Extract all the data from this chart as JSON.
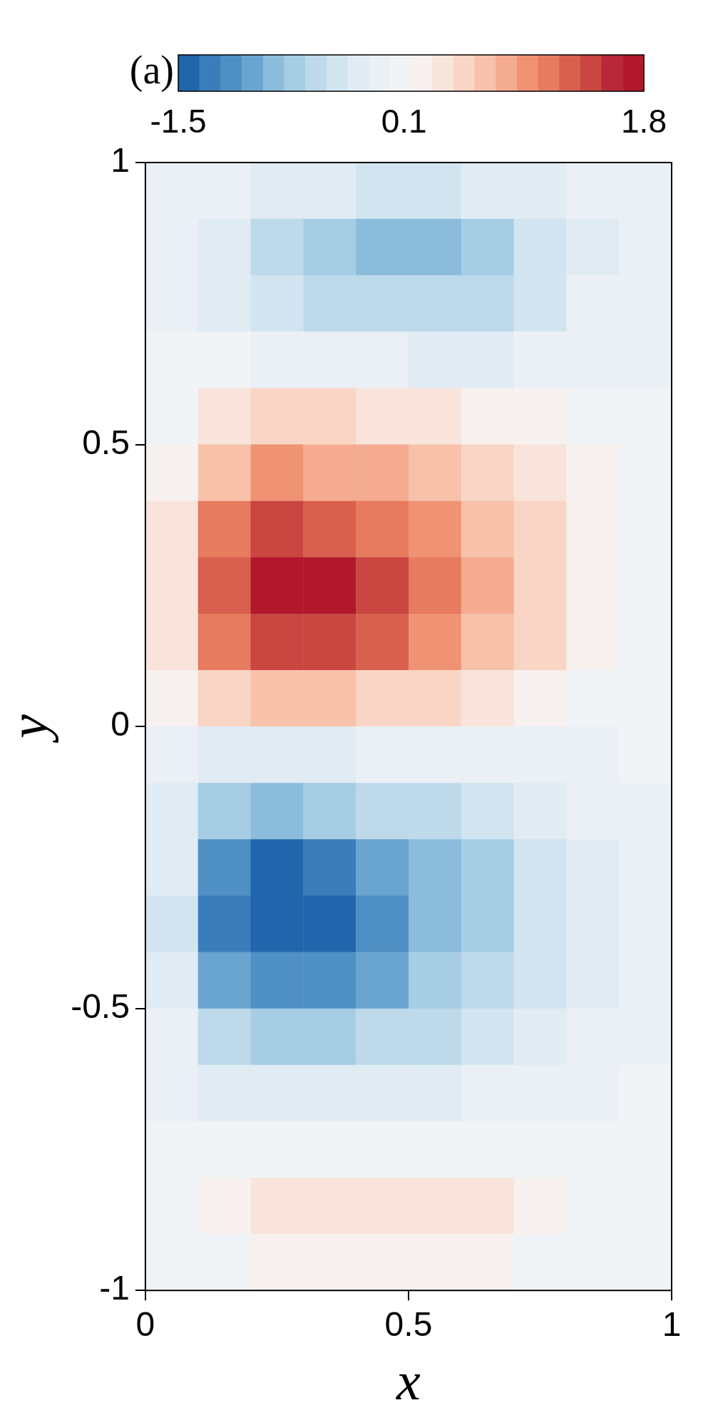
{
  "chart_data": {
    "type": "heatmap",
    "title": "(a)",
    "xlabel": "x",
    "ylabel": "y",
    "x": [
      0.05,
      0.15,
      0.25,
      0.35,
      0.45,
      0.55,
      0.65,
      0.75,
      0.85,
      0.95
    ],
    "xlim": [
      0,
      1
    ],
    "xticks": [
      0,
      0.5,
      1
    ],
    "ylim": [
      -1,
      1
    ],
    "yticks": [
      -1,
      -0.5,
      0,
      0.5,
      1
    ],
    "clim": [
      -1.5,
      1.8
    ],
    "cticks": [
      -1.5,
      0.1,
      1.8
    ],
    "grid": false,
    "colors": [
      "#2166ac",
      "#3a7dba",
      "#4f90c4",
      "#6aa5d0",
      "#8bbcdc",
      "#a6cde4",
      "#bdd9ea",
      "#d1e4f0",
      "#e0ebf3",
      "#eaf0f5",
      "#f1f4f7",
      "#f7f1ef",
      "#f9e4dc",
      "#f9d5c5",
      "#f7c1aa",
      "#f4ab8f",
      "#ef9374",
      "#e67b5f",
      "#d9604e",
      "#c94641",
      "#b8283a",
      "#b2182b"
    ],
    "cells": [
      [
        -0.05,
        -0.15,
        -0.25,
        -0.3,
        -0.35,
        -0.35,
        -0.3,
        -0.2,
        -0.1,
        -0.05
      ],
      [
        -0.1,
        -0.3,
        -0.55,
        -0.7,
        -0.8,
        -0.85,
        -0.7,
        -0.45,
        -0.2,
        -0.05
      ],
      [
        -0.05,
        -0.2,
        -0.4,
        -0.5,
        -0.55,
        -0.55,
        -0.5,
        -0.35,
        -0.15,
        -0.05
      ],
      [
        0.05,
        0.0,
        -0.05,
        -0.1,
        -0.15,
        -0.2,
        -0.2,
        -0.15,
        -0.1,
        -0.05
      ],
      [
        0.1,
        0.35,
        0.45,
        0.45,
        0.4,
        0.35,
        0.25,
        0.15,
        0.05,
        0.0
      ],
      [
        0.2,
        0.7,
        0.9,
        0.85,
        0.75,
        0.6,
        0.45,
        0.3,
        0.15,
        0.05
      ],
      [
        0.3,
        1.1,
        1.4,
        1.3,
        1.1,
        0.9,
        0.7,
        0.45,
        0.2,
        0.05
      ],
      [
        0.35,
        1.3,
        1.7,
        1.65,
        1.35,
        1.1,
        0.8,
        0.5,
        0.25,
        0.05
      ],
      [
        0.3,
        1.1,
        1.45,
        1.4,
        1.2,
        0.95,
        0.7,
        0.45,
        0.2,
        0.05
      ],
      [
        0.15,
        0.5,
        0.65,
        0.6,
        0.55,
        0.45,
        0.35,
        0.25,
        0.1,
        0.0
      ],
      [
        -0.05,
        -0.2,
        -0.25,
        -0.2,
        -0.15,
        -0.1,
        -0.1,
        -0.05,
        -0.05,
        0.0
      ],
      [
        -0.2,
        -0.7,
        -0.8,
        -0.7,
        -0.6,
        -0.5,
        -0.4,
        -0.3,
        -0.15,
        -0.05
      ],
      [
        -0.3,
        -1.1,
        -1.35,
        -1.25,
        -1.05,
        -0.85,
        -0.65,
        -0.45,
        -0.2,
        -0.05
      ],
      [
        -0.35,
        -1.25,
        -1.5,
        -1.4,
        -1.1,
        -0.9,
        -0.7,
        -0.45,
        -0.25,
        -0.05
      ],
      [
        -0.3,
        -0.95,
        -1.15,
        -1.1,
        -0.95,
        -0.75,
        -0.55,
        -0.4,
        -0.2,
        -0.05
      ],
      [
        -0.15,
        -0.55,
        -0.7,
        -0.65,
        -0.6,
        -0.5,
        -0.4,
        -0.3,
        -0.15,
        -0.05
      ],
      [
        -0.05,
        -0.2,
        -0.25,
        -0.25,
        -0.2,
        -0.2,
        -0.15,
        -0.1,
        -0.05,
        0.0
      ],
      [
        0.0,
        0.05,
        0.05,
        0.05,
        0.05,
        0.05,
        0.05,
        0.05,
        0.0,
        0.0
      ],
      [
        0.05,
        0.2,
        0.3,
        0.35,
        0.35,
        0.35,
        0.3,
        0.2,
        0.1,
        0.05
      ],
      [
        0.0,
        0.1,
        0.15,
        0.15,
        0.2,
        0.2,
        0.15,
        0.1,
        0.05,
        0.0
      ]
    ]
  }
}
